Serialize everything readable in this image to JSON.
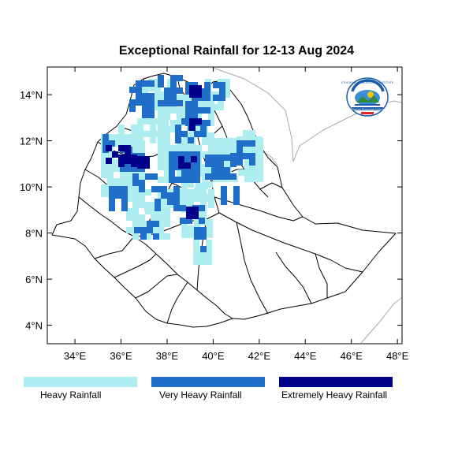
{
  "title": "Exceptional Rainfall for 12-13 Aug 2024",
  "logo": {
    "top_text": "ETHIOPIAN METEOROLOGY INSTITUTE",
    "bottom_text": "Ethiopian Meteorology Institute"
  },
  "axes": {
    "lon_ticks": [
      "34°E",
      "36°E",
      "38°E",
      "40°E",
      "42°E",
      "44°E",
      "46°E",
      "48°E"
    ],
    "lat_ticks": [
      "14°N",
      "12°N",
      "10°N",
      "8°N",
      "6°N",
      "4°N"
    ],
    "lon_values": [
      34,
      36,
      38,
      40,
      42,
      44,
      46,
      48
    ],
    "lat_values": [
      14,
      12,
      10,
      8,
      6,
      4
    ],
    "lon_range": [
      32.8,
      48.2
    ],
    "lat_range": [
      3.2,
      15.2
    ]
  },
  "legend": [
    {
      "label": "Heavy Rainfall",
      "color": "#aeeef0"
    },
    {
      "label": "Very Heavy Rainfall",
      "color": "#1f6fc9"
    },
    {
      "label": "Extremely Heavy Rainfall",
      "color": "#00008b"
    }
  ],
  "colors": {
    "heavy": "#aeeef0",
    "very_heavy": "#1f6fc9",
    "extreme": "#00008b",
    "boundary": "#000000",
    "neighbor_border": "#a9a9a9"
  }
}
